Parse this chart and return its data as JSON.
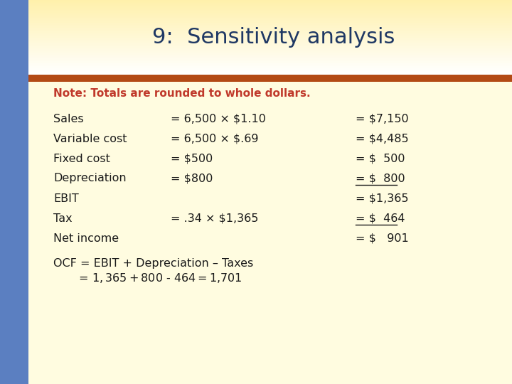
{
  "title": "9:  Sensitivity analysis",
  "title_color": "#1F3864",
  "title_fontsize": 22,
  "note_text": "Note: Totals are rounded to whole dollars.",
  "note_color": "#C0392B",
  "note_fontsize": 11,
  "sidebar_color": "#5B7FC1",
  "rust_bar_color": "#B34A15",
  "content_color": "#1a1a1a",
  "content_fontsize": 11.5,
  "rows": [
    {
      "label": "Sales",
      "middle": "= 6,500 × $1.10",
      "right": "= $7,150",
      "underline": false
    },
    {
      "label": "Variable cost",
      "middle": "= 6,500 × $.69",
      "right": "= $4,485",
      "underline": false
    },
    {
      "label": "Fixed cost",
      "middle": "= $500",
      "right": "= $  500",
      "underline": false
    },
    {
      "label": "Depreciation",
      "middle": "= $800",
      "right": "= $  800",
      "underline": true
    },
    {
      "label": "EBIT",
      "middle": "",
      "right": "= $1,365",
      "underline": false
    },
    {
      "label": "Tax",
      "middle": "= .34 × $1,365",
      "right": "= $  464",
      "underline": true
    },
    {
      "label": "Net income",
      "middle": "",
      "right": "= $   901",
      "underline": false
    }
  ],
  "ocf_line1": "OCF = EBIT + Depreciation – Taxes",
  "ocf_line2": "       = $1,365 + $800 - $464 = $1,701",
  "header_top_color": "#FFFFFF",
  "header_mid_color": "#FFF4C2",
  "content_bg_color": "#FFFCE8"
}
